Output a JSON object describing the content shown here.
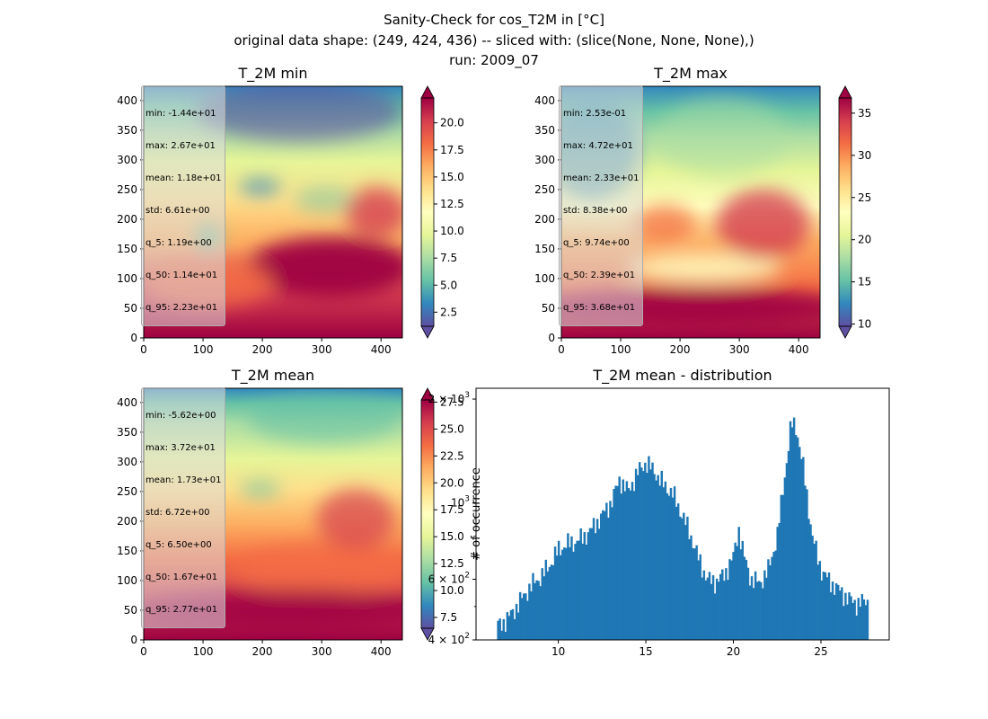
{
  "figure": {
    "suptitle_lines": [
      "Sanity-Check for cos_T2M in [°C]",
      "original data shape: (249, 424, 436) -- sliced with: (slice(None, None, None),)",
      "run: 2009_07"
    ]
  },
  "colormap": {
    "name": "Spectral_r",
    "stops": [
      "#5e4fa2",
      "#3288bd",
      "#66c2a5",
      "#abdda4",
      "#e6f598",
      "#ffffbf",
      "#fee08b",
      "#fdae61",
      "#f46d43",
      "#d53e4f",
      "#9e0142"
    ]
  },
  "chart_data": [
    {
      "type": "heatmap",
      "title": "T_2M min",
      "xlim": [
        0,
        436
      ],
      "ylim": [
        0,
        424
      ],
      "x_ticks": [
        0,
        100,
        200,
        300,
        400
      ],
      "y_ticks": [
        0,
        50,
        100,
        150,
        200,
        250,
        300,
        350,
        400
      ],
      "colorbar": {
        "range": [
          1.2,
          22.3
        ],
        "ticks": [
          "2.5",
          "5.0",
          "7.5",
          "10.0",
          "12.5",
          "15.0",
          "17.5",
          "20.0"
        ],
        "extend": "both"
      },
      "stats": [
        "min: -1.44e+01",
        "max: 2.67e+01",
        "mean: 1.18e+01",
        "std: 6.61e+00",
        "q_5: 1.19e+00",
        "q_50: 1.14e+01",
        "q_95: 2.23e+01"
      ]
    },
    {
      "type": "heatmap",
      "title": "T_2M max",
      "xlim": [
        0,
        436
      ],
      "ylim": [
        0,
        424
      ],
      "x_ticks": [
        0,
        100,
        200,
        300,
        400
      ],
      "y_ticks": [
        0,
        50,
        100,
        150,
        200,
        250,
        300,
        350,
        400
      ],
      "colorbar": {
        "range": [
          9.74,
          36.8
        ],
        "ticks": [
          "10",
          "15",
          "20",
          "25",
          "30",
          "35"
        ],
        "extend": "both"
      },
      "stats": [
        "min: 2.53e-01",
        "max: 4.72e+01",
        "mean: 2.33e+01",
        "std: 8.38e+00",
        "q_5: 9.74e+00",
        "q_50: 2.39e+01",
        "q_95: 3.68e+01"
      ]
    },
    {
      "type": "heatmap",
      "title": "T_2M mean",
      "xlim": [
        0,
        436
      ],
      "ylim": [
        0,
        424
      ],
      "x_ticks": [
        0,
        100,
        200,
        300,
        400
      ],
      "y_ticks": [
        0,
        50,
        100,
        150,
        200,
        250,
        300,
        350,
        400
      ],
      "colorbar": {
        "range": [
          6.5,
          27.7
        ],
        "ticks": [
          "7.5",
          "10.0",
          "12.5",
          "15.0",
          "17.5",
          "20.0",
          "22.5",
          "25.0",
          "27.5"
        ],
        "extend": "both"
      },
      "stats": [
        "min: -5.62e+00",
        "max: 3.72e+01",
        "mean: 1.73e+01",
        "std: 6.72e+00",
        "q_5: 6.50e+00",
        "q_50: 1.67e+01",
        "q_95: 2.77e+01"
      ]
    },
    {
      "type": "bar",
      "title": "T_2M mean - distribution",
      "ylabel": "# of occurrence",
      "yscale": "log",
      "xlim": [
        5.3,
        28.9
      ],
      "ylim": [
        400,
        2150
      ],
      "x_ticks": [
        10,
        15,
        20,
        25
      ],
      "y_ticks": [
        {
          "value": 400,
          "base": "4 × 10",
          "exp": "2"
        },
        {
          "value": 600,
          "base": "6 × 10",
          "exp": "2"
        },
        {
          "value": 1000,
          "base": "10",
          "exp": "3"
        },
        {
          "value": 2000,
          "base": "2 × 10",
          "exp": "3"
        }
      ],
      "color": "#1f77b4",
      "bin_start": 6.5,
      "bin_width": 0.105,
      "hist_anchors": [
        [
          6.5,
          440
        ],
        [
          7.0,
          455
        ],
        [
          7.5,
          490
        ],
        [
          8.0,
          535
        ],
        [
          8.5,
          580
        ],
        [
          9.0,
          610
        ],
        [
          9.5,
          660
        ],
        [
          10.0,
          730
        ],
        [
          10.5,
          760
        ],
        [
          11.0,
          770
        ],
        [
          11.5,
          800
        ],
        [
          12.0,
          850
        ],
        [
          12.5,
          920
        ],
        [
          13.0,
          1000
        ],
        [
          13.5,
          1170
        ],
        [
          14.0,
          1080
        ],
        [
          14.5,
          1220
        ],
        [
          15.0,
          1310
        ],
        [
          15.5,
          1230
        ],
        [
          16.0,
          1130
        ],
        [
          16.5,
          1070
        ],
        [
          17.0,
          940
        ],
        [
          17.5,
          820
        ],
        [
          18.0,
          690
        ],
        [
          18.5,
          600
        ],
        [
          19.0,
          590
        ],
        [
          19.5,
          620
        ],
        [
          20.0,
          700
        ],
        [
          20.3,
          840
        ],
        [
          20.6,
          700
        ],
        [
          21.0,
          600
        ],
        [
          21.5,
          585
        ],
        [
          22.0,
          640
        ],
        [
          22.5,
          800
        ],
        [
          23.0,
          1280
        ],
        [
          23.3,
          1700
        ],
        [
          23.6,
          1650
        ],
        [
          24.0,
          1250
        ],
        [
          24.5,
          800
        ],
        [
          25.0,
          640
        ],
        [
          25.5,
          590
        ],
        [
          26.0,
          560
        ],
        [
          26.5,
          530
        ],
        [
          27.0,
          510
        ],
        [
          27.7,
          520
        ]
      ]
    }
  ]
}
